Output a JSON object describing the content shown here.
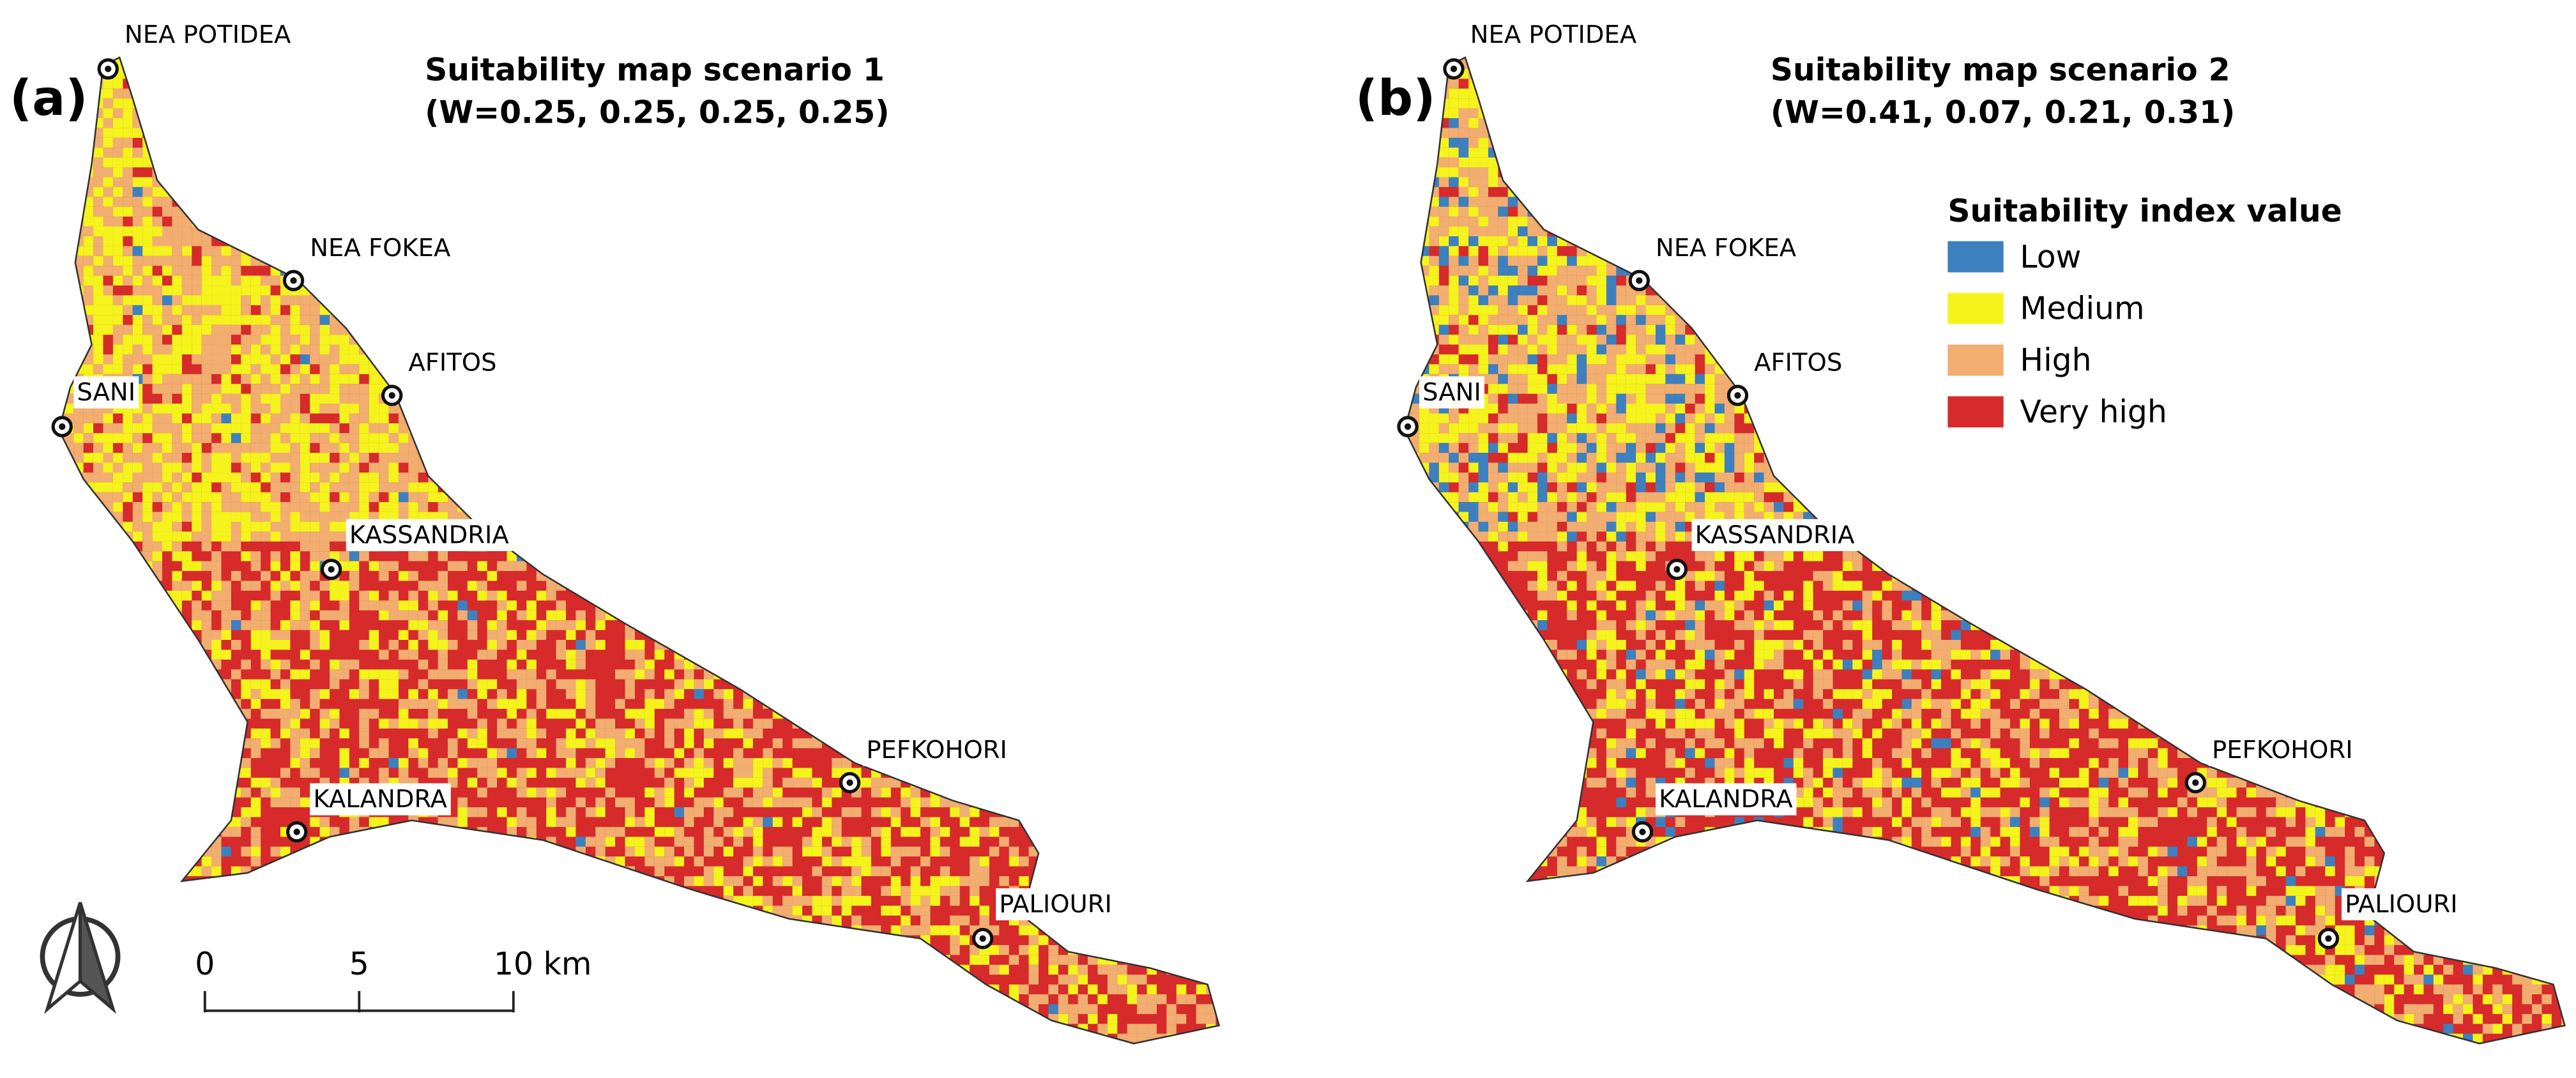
{
  "panels": [
    {
      "label": "(a)",
      "title": [
        "Suitability map scenario 1",
        "(W=0.25, 0.25, 0.25, 0.25)"
      ],
      "places": [
        "NEA POTIDEA",
        "NEA FOKEA",
        "AFITOS",
        "SANI",
        "KASSANDRIA",
        "KALANDRA",
        "PEFKOHORI",
        "PALIOURI"
      ]
    },
    {
      "label": "(b)",
      "title": [
        "Suitability map scenario 2",
        "(W=0.41, 0.07, 0.21, 0.31)"
      ],
      "places": [
        "NEA POTIDEA",
        "NEA FOKEA",
        "AFITOS",
        "SANI",
        "KASSANDRIA",
        "KALANDRA",
        "PEFKOHORI",
        "PALIOURI"
      ]
    }
  ],
  "legend": {
    "title": "Suitability index value",
    "items": [
      {
        "label": "Low",
        "color": "#3d80bf"
      },
      {
        "label": "Medium",
        "color": "#f4f41c"
      },
      {
        "label": "High",
        "color": "#f1ae70"
      },
      {
        "label": "Very high",
        "color": "#d62a2b"
      }
    ]
  },
  "scale_bar": {
    "labels": [
      "0",
      "5",
      "10 km"
    ]
  }
}
